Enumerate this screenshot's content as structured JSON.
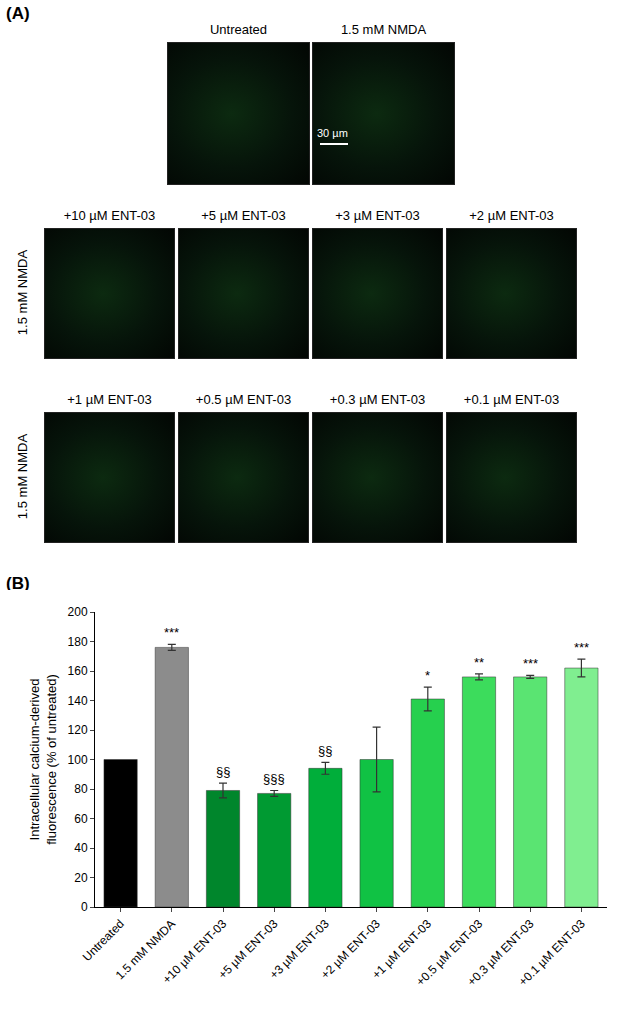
{
  "panel_a": {
    "letter": "(A)",
    "top_row": [
      "Untreated",
      "1.5 mM NMDA"
    ],
    "scale_bar": "30 µm",
    "row_label": "1.5 mM NMDA",
    "rows": [
      [
        "+10 µM ENT-03",
        "+5 µM ENT-03",
        "+3 µM ENT-03",
        "+2 µM ENT-03"
      ],
      [
        "+1 µM ENT-03",
        "+0.5 µM ENT-03",
        "+0.3 µM ENT-03",
        "+0.1 µM ENT-03"
      ]
    ]
  },
  "chart_data": {
    "letter": "(B)",
    "type": "bar",
    "ylabel": "Intracellular calcium-derived fluorescence (% of untreated)",
    "categories": [
      "Untreated",
      "1.5 mM NMDA",
      "+10 µM ENT-03",
      "+5 µM ENT-03",
      "+3 µM ENT-03",
      "+2 µM ENT-03",
      "+1 µM ENT-03",
      "+0.5 µM ENT-03",
      "+0.3 µM ENT-03",
      "+0.1 µM ENT-03"
    ],
    "values": [
      100,
      176,
      79,
      77,
      94,
      100,
      141,
      156,
      156,
      162
    ],
    "errors": [
      null,
      2,
      5,
      2,
      4,
      22,
      8,
      2,
      1,
      6
    ],
    "significance": [
      null,
      "***",
      "§§",
      "§§§",
      "§§",
      null,
      "*",
      "**",
      "***",
      "***"
    ],
    "colors": [
      "#000000",
      "#8c8c8c",
      "#00862c",
      "#009a32",
      "#00ae3a",
      "#10c244",
      "#26d04e",
      "#3cdc5c",
      "#5ae472",
      "#80ee90"
    ],
    "ylim": [
      0,
      200
    ],
    "yticks": [
      0,
      20,
      40,
      60,
      80,
      100,
      120,
      140,
      160,
      180,
      200
    ],
    "grid": false
  }
}
